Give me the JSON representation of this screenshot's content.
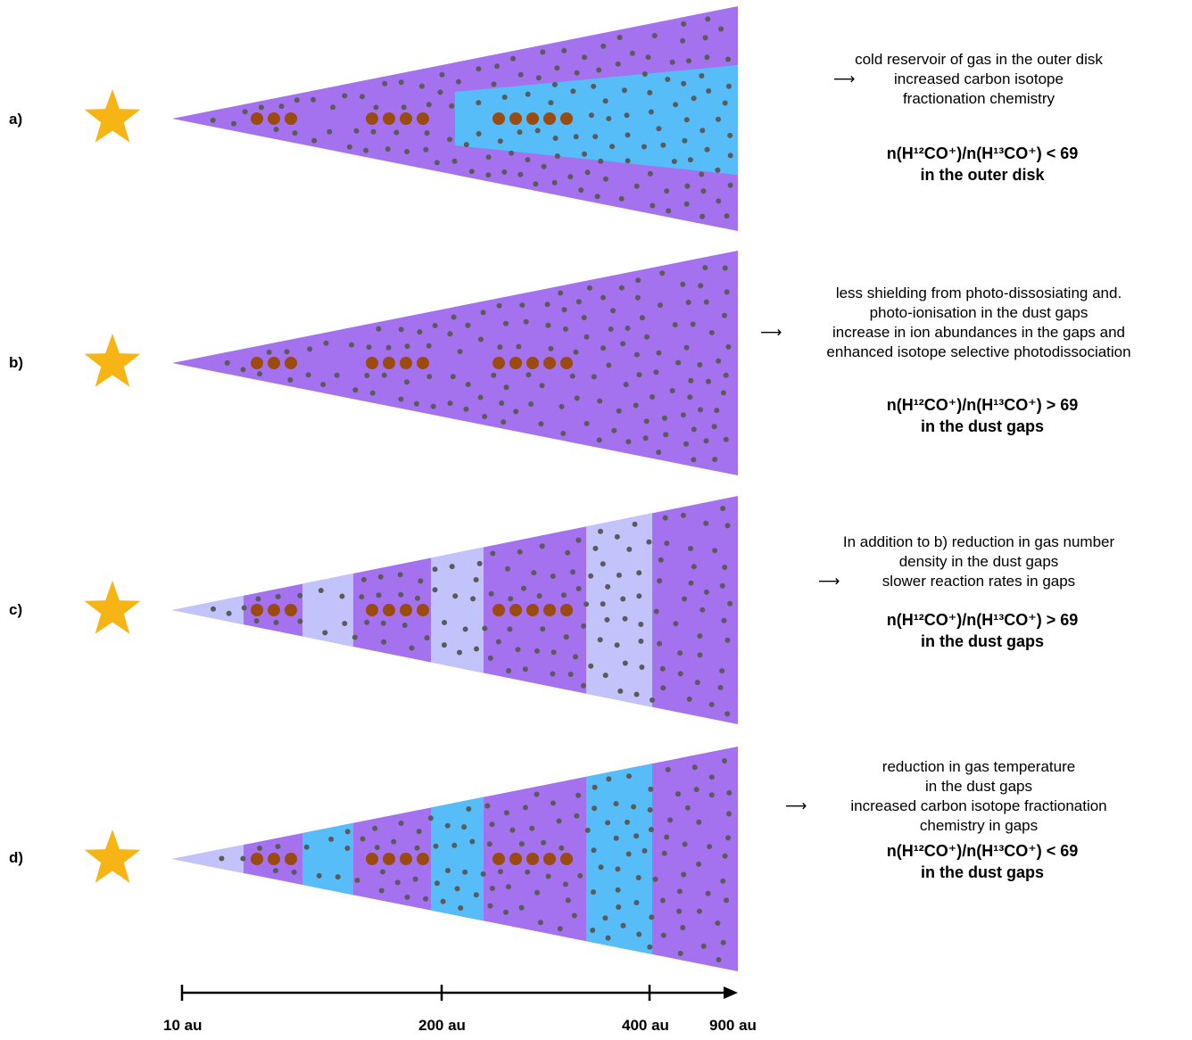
{
  "colors": {
    "gas": "#a472ee",
    "cold": "#56bdf8",
    "depleted": "#c2c3fa",
    "dot": "#5a5a5a",
    "pebble": "#9b4a10",
    "star": "#f7b515"
  },
  "panels": [
    {
      "label": "a)",
      "desc_lines": [
        "cold reservoir of gas in the outer disk",
        "increased carbon isotope",
        "fractionation chemistry"
      ],
      "arrow_line": 1,
      "result": {
        "ratio": "n(H¹²CO⁺)/n(H¹³CO⁺) < 69",
        "where": "in the outer disk"
      }
    },
    {
      "label": "b)",
      "desc_lines": [
        "less shielding from photo-dissosiating and.",
        "photo-ionisation in the dust gaps",
        "increase in ion abundances in the gaps and",
        "enhanced isotope selective photodissociation"
      ],
      "arrow_line": 2,
      "result": {
        "ratio": "n(H¹²CO⁺)/n(H¹³CO⁺) > 69",
        "where": "in the dust gaps"
      }
    },
    {
      "label": "c)",
      "desc_lines": [
        "In addition to b) reduction in gas number",
        "density in the dust gaps",
        "slower reaction rates in gaps"
      ],
      "arrow_line": 2,
      "result": {
        "ratio": "n(H¹²CO⁺)/n(H¹³CO⁺) > 69",
        "where": "in the dust gaps"
      }
    },
    {
      "label": "d)",
      "desc_lines": [
        "reduction in gas temperature",
        "in the dust gaps",
        "increased carbon isotope fractionation",
        "chemistry in gaps"
      ],
      "arrow_line": 2,
      "result": {
        "ratio": "n(H¹²CO⁺)/n(H¹³CO⁺) < 69",
        "where": "in the dust gaps"
      }
    }
  ],
  "axis": {
    "ticks": [
      "10 au",
      "200 au",
      "400 au",
      "900 au"
    ]
  }
}
